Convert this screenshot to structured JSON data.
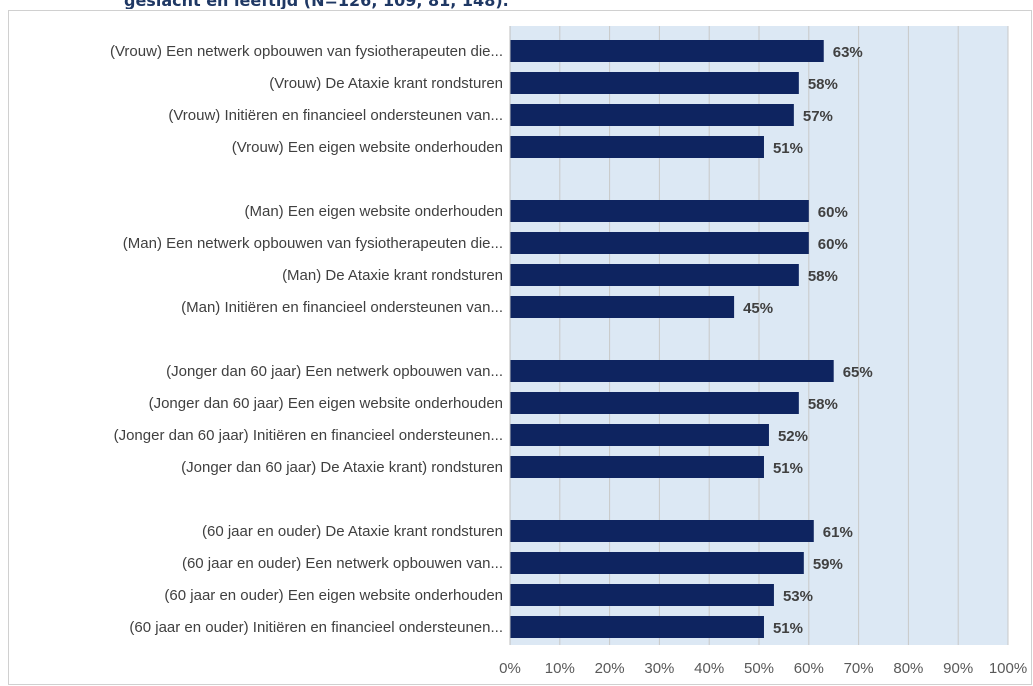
{
  "page": {
    "title_fragment": "geslacht en leeftijd (N=126, 109, 81, 148)."
  },
  "colors": {
    "bar": "#0e2460",
    "plot_background": "#dce8f4",
    "gridline": "#c8c8c8"
  },
  "chart_data": {
    "type": "bar",
    "orientation": "horizontal",
    "title": "geslacht en leeftijd (N=126, 109, 81, 148).",
    "xlabel": "",
    "ylabel": "",
    "xlim": [
      0,
      100
    ],
    "grid": true,
    "x_ticks": [
      "0%",
      "10%",
      "20%",
      "30%",
      "40%",
      "50%",
      "60%",
      "70%",
      "80%",
      "90%",
      "100%"
    ],
    "groups": [
      {
        "items": [
          {
            "label": "(Vrouw) Een netwerk opbouwen van fysiotherapeuten die...",
            "value": 63,
            "value_label": "63%"
          },
          {
            "label": "(Vrouw) De Ataxie krant rondsturen",
            "value": 58,
            "value_label": "58%"
          },
          {
            "label": "(Vrouw) Initiëren en financieel ondersteunen van...",
            "value": 57,
            "value_label": "57%"
          },
          {
            "label": "(Vrouw) Een eigen website onderhouden",
            "value": 51,
            "value_label": "51%"
          }
        ]
      },
      {
        "items": [
          {
            "label": "(Man) Een eigen website onderhouden",
            "value": 60,
            "value_label": "60%"
          },
          {
            "label": "(Man) Een netwerk opbouwen van fysiotherapeuten die...",
            "value": 60,
            "value_label": "60%"
          },
          {
            "label": "(Man) De Ataxie krant rondsturen",
            "value": 58,
            "value_label": "58%"
          },
          {
            "label": "(Man) Initiëren en financieel ondersteunen van...",
            "value": 45,
            "value_label": "45%"
          }
        ]
      },
      {
        "items": [
          {
            "label": "(Jonger dan 60 jaar) Een netwerk opbouwen van...",
            "value": 65,
            "value_label": "65%"
          },
          {
            "label": "(Jonger dan 60 jaar) Een eigen website onderhouden",
            "value": 58,
            "value_label": "58%"
          },
          {
            "label": "(Jonger  dan 60 jaar) Initiëren en financieel ondersteunen...",
            "value": 52,
            "value_label": "52%"
          },
          {
            "label": "(Jonger dan 60 jaar) De Ataxie krant) rondsturen",
            "value": 51,
            "value_label": "51%"
          }
        ]
      },
      {
        "items": [
          {
            "label": "(60 jaar en ouder) De Ataxie krant rondsturen",
            "value": 61,
            "value_label": "61%"
          },
          {
            "label": "(60 jaar en ouder) Een netwerk opbouwen van...",
            "value": 59,
            "value_label": "59%"
          },
          {
            "label": "(60 jaar en ouder) Een eigen website onderhouden",
            "value": 53,
            "value_label": "53%"
          },
          {
            "label": "(60 jaar en ouder) Initiëren en financieel ondersteunen...",
            "value": 51,
            "value_label": "51%"
          }
        ]
      }
    ]
  }
}
